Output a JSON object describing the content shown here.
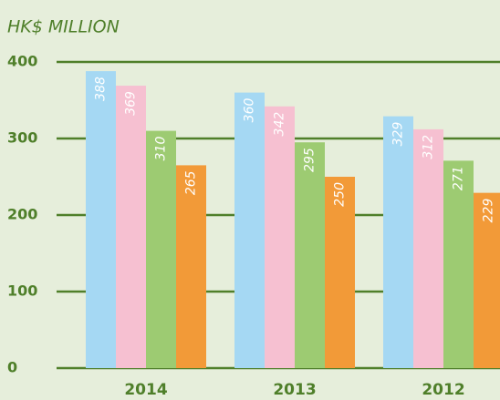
{
  "chart_data": {
    "type": "bar",
    "title": "HK$ MILLION",
    "categories": [
      "2014",
      "2013",
      "2012"
    ],
    "series": [
      {
        "color": "#a5d8f3",
        "values": [
          388,
          360,
          329
        ]
      },
      {
        "color": "#f6c0d1",
        "values": [
          369,
          342,
          312
        ]
      },
      {
        "color": "#9dcb72",
        "values": [
          310,
          295,
          271
        ]
      },
      {
        "color": "#f29a38",
        "values": [
          265,
          250,
          229
        ]
      }
    ],
    "ylim": [
      0,
      400
    ],
    "yticks": [
      0,
      100,
      200,
      300,
      400
    ],
    "grid": true
  }
}
